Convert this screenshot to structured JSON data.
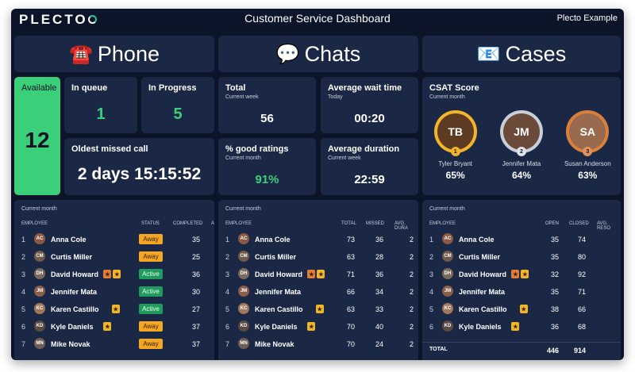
{
  "header": {
    "logo": "PLECTO",
    "title": "Customer Service Dashboard",
    "org": "Plecto Example"
  },
  "sections": {
    "phone": {
      "icon": "☎️",
      "title": "Phone"
    },
    "chats": {
      "icon": "💬",
      "title": "Chats"
    },
    "cases": {
      "icon": "📧",
      "title": "Cases"
    }
  },
  "phone_kpis": {
    "available": {
      "label": "Available",
      "value": "12"
    },
    "in_queue": {
      "label": "In queue",
      "value": "1"
    },
    "in_progress": {
      "label": "In Progress",
      "value": "5"
    },
    "oldest_missed": {
      "label": "Oldest missed call",
      "value": "2 days 15:15:52"
    }
  },
  "chat_kpis": {
    "total": {
      "label": "Total",
      "sub": "Current week",
      "value": "56"
    },
    "avg_wait": {
      "label": "Average wait time",
      "sub": "Today",
      "value": "00:20"
    },
    "good_ratings": {
      "label": "% good ratings",
      "sub": "Current month",
      "value": "91%"
    },
    "avg_duration": {
      "label": "Average duration",
      "sub": "Current week",
      "value": "22:59"
    }
  },
  "csat": {
    "label": "CSAT Score",
    "sub": "Current month",
    "people": [
      {
        "name": "Tyler Bryant",
        "score": "65%",
        "rank": "1",
        "initials": "TB"
      },
      {
        "name": "Jennifer Mata",
        "score": "64%",
        "rank": "2",
        "initials": "JM"
      },
      {
        "name": "Susan Anderson",
        "score": "63%",
        "rank": "3",
        "initials": "SA"
      }
    ]
  },
  "phone_table": {
    "caption": "Current month",
    "columns": [
      "EMPLOYEE",
      "STATUS",
      "COMPLETED",
      "A"
    ],
    "rows": [
      {
        "rank": "1",
        "name": "Anna Cole",
        "initials": "AC",
        "status": "Away",
        "completed": "35"
      },
      {
        "rank": "2",
        "name": "Curtis Miller",
        "initials": "CM",
        "status": "Away",
        "completed": "25"
      },
      {
        "rank": "3",
        "name": "David Howard",
        "initials": "DH",
        "status": "Active",
        "completed": "36"
      },
      {
        "rank": "4",
        "name": "Jennifer Mata",
        "initials": "JM",
        "status": "Active",
        "completed": "30"
      },
      {
        "rank": "5",
        "name": "Karen Castillo",
        "initials": "KC",
        "status": "Active",
        "completed": "27"
      },
      {
        "rank": "6",
        "name": "Kyle Daniels",
        "initials": "KD",
        "status": "Away",
        "completed": "37"
      },
      {
        "rank": "7",
        "name": "Mike Novak",
        "initials": "MN",
        "status": "Away",
        "completed": "37"
      }
    ]
  },
  "chat_table": {
    "caption": "Current month",
    "columns": [
      "EMPLOYEE",
      "TOTAL",
      "MISSED",
      "AVG. DURA"
    ],
    "rows": [
      {
        "rank": "1",
        "name": "Anna Cole",
        "initials": "AC",
        "total": "73",
        "missed": "36",
        "avg": "2"
      },
      {
        "rank": "2",
        "name": "Curtis Miller",
        "initials": "CM",
        "total": "63",
        "missed": "28",
        "avg": "2"
      },
      {
        "rank": "3",
        "name": "David Howard",
        "initials": "DH",
        "total": "71",
        "missed": "36",
        "avg": "2"
      },
      {
        "rank": "4",
        "name": "Jennifer Mata",
        "initials": "JM",
        "total": "66",
        "missed": "34",
        "avg": "2"
      },
      {
        "rank": "5",
        "name": "Karen Castillo",
        "initials": "KC",
        "total": "63",
        "missed": "33",
        "avg": "2"
      },
      {
        "rank": "6",
        "name": "Kyle Daniels",
        "initials": "KD",
        "total": "70",
        "missed": "40",
        "avg": "2"
      },
      {
        "rank": "7",
        "name": "Mike Novak",
        "initials": "MN",
        "total": "70",
        "missed": "24",
        "avg": "2"
      }
    ]
  },
  "cases_table": {
    "caption": "Current month",
    "columns": [
      "EMPLOYEE",
      "OPEN",
      "CLOSED",
      "AVG. RESO"
    ],
    "rows": [
      {
        "rank": "1",
        "name": "Anna Cole",
        "initials": "AC",
        "open": "35",
        "closed": "74"
      },
      {
        "rank": "2",
        "name": "Curtis Miller",
        "initials": "CM",
        "open": "35",
        "closed": "80"
      },
      {
        "rank": "3",
        "name": "David Howard",
        "initials": "DH",
        "open": "32",
        "closed": "92"
      },
      {
        "rank": "4",
        "name": "Jennifer Mata",
        "initials": "JM",
        "open": "35",
        "closed": "71"
      },
      {
        "rank": "5",
        "name": "Karen Castillo",
        "initials": "KC",
        "open": "38",
        "closed": "66"
      },
      {
        "rank": "6",
        "name": "Kyle Daniels",
        "initials": "KD",
        "open": "36",
        "closed": "68"
      }
    ],
    "total": {
      "label": "TOTAL",
      "open": "446",
      "closed": "914"
    }
  },
  "colors": {
    "bg": "#0b1428",
    "panel": "#1b2845",
    "green": "#3ccf7a",
    "away": "#f5a623",
    "active": "#1f9b5d",
    "gold": "#f2b42b"
  }
}
